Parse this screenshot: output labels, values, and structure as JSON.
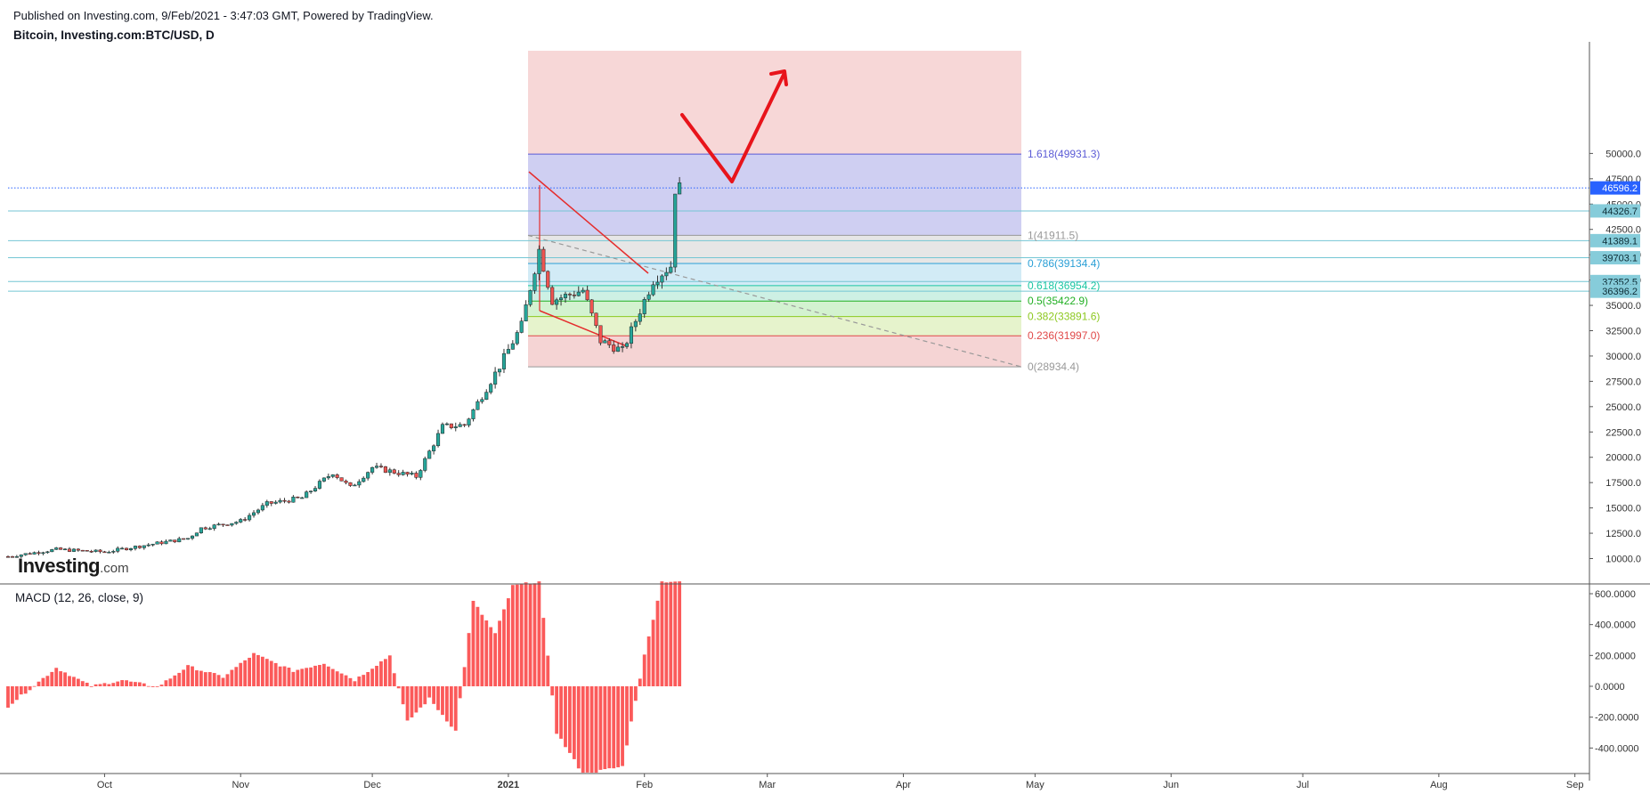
{
  "header": {
    "published": "Published on Investing.com, 9/Feb/2021 - 3:47:03 GMT, Powered by TradingView.",
    "symbol": "Bitcoin, Investing.com:BTC/USD, D"
  },
  "logo": {
    "main": "Investing",
    "suffix": ".com"
  },
  "colors": {
    "up": "#26a69a",
    "down": "#ef5350",
    "hline": "#74c6d4",
    "price_line": "#2962ff",
    "arrow": "#e8141b",
    "triangle": "#e52d2d",
    "macd": "#fb5a5a"
  },
  "chart_data": [
    {
      "type": "candlestick",
      "title": "Bitcoin, Investing.com:BTC/USD, D",
      "x_ticks": [
        "Oct",
        "Nov",
        "Dec",
        "2021",
        "Feb",
        "Mar",
        "Apr",
        "May",
        "Jun",
        "Jul",
        "Aug",
        "Sep"
      ],
      "y_ticks": [
        "50000.0",
        "47500.0",
        "45000.0",
        "42500.0",
        "40000.0",
        "37500.0",
        "35000.0",
        "32500.0",
        "30000.0",
        "27500.0",
        "25000.0",
        "22500.0",
        "20000.0",
        "17500.0",
        "15000.0",
        "12500.0",
        "10000.0"
      ],
      "ylim": [
        8950,
        52650
      ],
      "current_price": "46596.2",
      "horizontal_levels": [
        "44326.7",
        "41389.1",
        "39703.1",
        "37352.5",
        "36396.2"
      ],
      "fibonacci": [
        {
          "ratio": 1.618,
          "label": "1.618(49931.3)",
          "price": 49931.3,
          "color": "#5b5bd6"
        },
        {
          "ratio": 1,
          "label": "1(41911.5)",
          "price": 41911.5,
          "color": "#999999"
        },
        {
          "ratio": 0.786,
          "label": "0.786(39134.4)",
          "price": 39134.4,
          "color": "#2a9fd6"
        },
        {
          "ratio": 0.618,
          "label": "0.618(36954.2)",
          "price": 36954.2,
          "color": "#1cc7a3"
        },
        {
          "ratio": 0.5,
          "label": "0.5(35422.9)",
          "price": 35422.9,
          "color": "#22b024"
        },
        {
          "ratio": 0.382,
          "label": "0.382(33891.6)",
          "price": 33891.6,
          "color": "#8dc820"
        },
        {
          "ratio": 0.236,
          "label": "0.236(31997.0)",
          "price": 31997.0,
          "color": "#e04848"
        },
        {
          "ratio": 0,
          "label": "0(28934.4)",
          "price": 28934.4,
          "color": "#999999"
        }
      ],
      "close_path": [
        {
          "date": "2020-09-09",
          "close": 10200
        },
        {
          "date": "2020-09-20",
          "close": 10900
        },
        {
          "date": "2020-10-01",
          "close": 10650
        },
        {
          "date": "2020-10-10",
          "close": 11300
        },
        {
          "date": "2020-10-20",
          "close": 12000
        },
        {
          "date": "2020-10-23",
          "close": 13000
        },
        {
          "date": "2020-11-01",
          "close": 13700
        },
        {
          "date": "2020-11-07",
          "close": 15400
        },
        {
          "date": "2020-11-15",
          "close": 16000
        },
        {
          "date": "2020-11-22",
          "close": 18500
        },
        {
          "date": "2020-11-26",
          "close": 17000
        },
        {
          "date": "2020-12-01",
          "close": 19000
        },
        {
          "date": "2020-12-11",
          "close": 18100
        },
        {
          "date": "2020-12-17",
          "close": 23000
        },
        {
          "date": "2020-12-22",
          "close": 23200
        },
        {
          "date": "2020-12-30",
          "close": 29000
        },
        {
          "date": "2021-01-04",
          "close": 33000
        },
        {
          "date": "2021-01-08",
          "close": 40500
        },
        {
          "date": "2021-01-11",
          "close": 35500
        },
        {
          "date": "2021-01-18",
          "close": 36500
        },
        {
          "date": "2021-01-22",
          "close": 31500
        },
        {
          "date": "2021-01-27",
          "close": 30500
        },
        {
          "date": "2021-02-03",
          "close": 37500
        },
        {
          "date": "2021-02-07",
          "close": 38900
        },
        {
          "date": "2021-02-08",
          "close": 46500
        },
        {
          "date": "2021-02-09",
          "close": 46596.2
        }
      ]
    },
    {
      "type": "bar",
      "title": "MACD (12, 26, close, 9)",
      "y_ticks": [
        "600.0000",
        "400.0000",
        "200.0000",
        "0.0000",
        "-200.0000",
        "-400.0000"
      ],
      "ylim": [
        -575,
        680
      ],
      "path": [
        {
          "date": "2020-09-09",
          "value": -130
        },
        {
          "date": "2020-09-20",
          "value": 120
        },
        {
          "date": "2020-09-28",
          "value": 0
        },
        {
          "date": "2020-10-05",
          "value": 40
        },
        {
          "date": "2020-10-13",
          "value": -5
        },
        {
          "date": "2020-10-20",
          "value": 130
        },
        {
          "date": "2020-10-28",
          "value": 60
        },
        {
          "date": "2020-11-04",
          "value": 210
        },
        {
          "date": "2020-11-13",
          "value": 100
        },
        {
          "date": "2020-11-20",
          "value": 150
        },
        {
          "date": "2020-11-27",
          "value": 40
        },
        {
          "date": "2020-12-05",
          "value": 200
        },
        {
          "date": "2020-12-09",
          "value": -230
        },
        {
          "date": "2020-12-14",
          "value": -80
        },
        {
          "date": "2020-12-20",
          "value": -290
        },
        {
          "date": "2020-12-24",
          "value": 550
        },
        {
          "date": "2020-12-29",
          "value": 340
        },
        {
          "date": "2021-01-02",
          "value": 650
        },
        {
          "date": "2021-01-08",
          "value": 680
        },
        {
          "date": "2021-01-12",
          "value": -300
        },
        {
          "date": "2021-01-18",
          "value": -570
        },
        {
          "date": "2021-01-27",
          "value": -520
        },
        {
          "date": "2021-02-01",
          "value": 200
        },
        {
          "date": "2021-02-05",
          "value": 680
        },
        {
          "date": "2021-02-09",
          "value": 680
        }
      ]
    }
  ]
}
